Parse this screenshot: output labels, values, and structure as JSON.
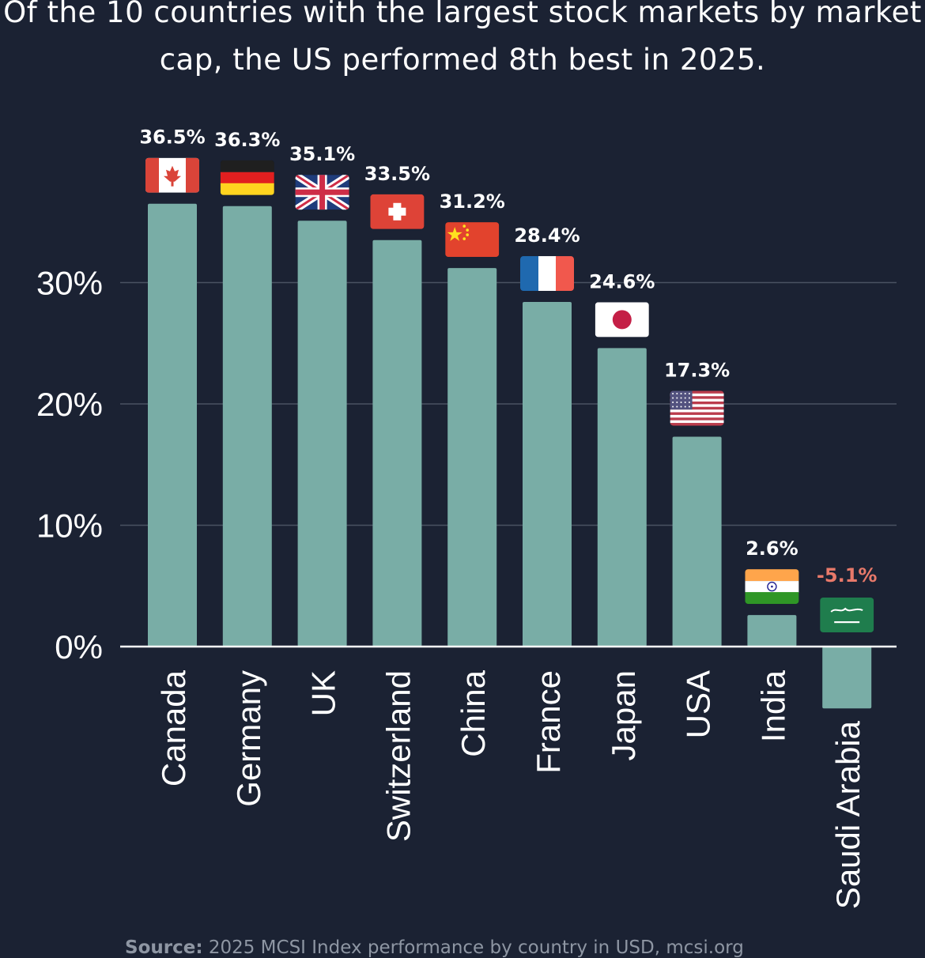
{
  "title": "Of the 10 countries with the largest stock markets by market cap, the US performed 8th best in 2025.",
  "source_label": "Source:",
  "source_text": " 2025 MCSI Index performance by country in USD, mcsi.org",
  "colors": {
    "background": "#1b2233",
    "bar": "#79ada6",
    "gridline": "#4a5262",
    "positive_label": "#ffffff",
    "negative_label": "#e8796a"
  },
  "chart_data": {
    "type": "bar",
    "title": "Of the 10 countries with the largest stock markets by market cap, the US performed 8th best in 2025.",
    "xlabel": "",
    "ylabel": "",
    "categories": [
      "Canada",
      "Germany",
      "UK",
      "Switzerland",
      "China",
      "France",
      "Japan",
      "USA",
      "India",
      "Saudi Arabia"
    ],
    "values": [
      36.5,
      36.3,
      35.1,
      33.5,
      31.2,
      28.4,
      24.6,
      17.3,
      2.6,
      -5.1
    ],
    "data_labels": [
      "36.5%",
      "36.3%",
      "35.1%",
      "33.5%",
      "31.2%",
      "28.4%",
      "24.6%",
      "17.3%",
      "2.6%",
      "-5.1%"
    ],
    "flags": [
      "canada-flag-icon",
      "germany-flag-icon",
      "uk-flag-icon",
      "switzerland-flag-icon",
      "china-flag-icon",
      "france-flag-icon",
      "japan-flag-icon",
      "usa-flag-icon",
      "india-flag-icon",
      "saudi-arabia-flag-icon"
    ],
    "yticks": [
      0,
      10,
      20,
      30
    ],
    "ytick_labels": [
      "0%",
      "10%",
      "20%",
      "30%"
    ],
    "ylim": [
      -5.1,
      36.5
    ],
    "grid": true,
    "legend": "none"
  }
}
